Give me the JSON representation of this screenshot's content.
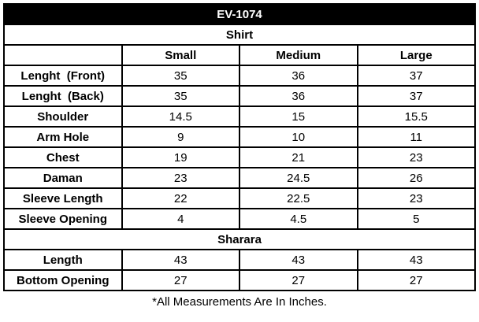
{
  "title": "EV-1074",
  "size_headers": [
    "Small",
    "Medium",
    "Large"
  ],
  "sections": [
    {
      "name": "Shirt",
      "show_size_header": true,
      "rows": [
        {
          "label": "Lenght  (Front)",
          "values": [
            "35",
            "36",
            "37"
          ]
        },
        {
          "label": "Lenght  (Back)",
          "values": [
            "35",
            "36",
            "37"
          ]
        },
        {
          "label": "Shoulder",
          "values": [
            "14.5",
            "15",
            "15.5"
          ]
        },
        {
          "label": "Arm Hole",
          "values": [
            "9",
            "10",
            "11"
          ]
        },
        {
          "label": "Chest",
          "values": [
            "19",
            "21",
            "23"
          ]
        },
        {
          "label": "Daman",
          "values": [
            "23",
            "24.5",
            "26"
          ]
        },
        {
          "label": "Sleeve Length",
          "values": [
            "22",
            "22.5",
            "23"
          ]
        },
        {
          "label": "Sleeve Opening",
          "values": [
            "4",
            "4.5",
            "5"
          ]
        }
      ]
    },
    {
      "name": "Sharara",
      "show_size_header": false,
      "rows": [
        {
          "label": "Length",
          "values": [
            "43",
            "43",
            "43"
          ]
        },
        {
          "label": "Bottom Opening",
          "values": [
            "27",
            "27",
            "27"
          ]
        }
      ]
    }
  ],
  "footnote": "*All Measurements Are In Inches.",
  "colors": {
    "title_bar_bg": "#000000",
    "title_bar_text": "#ffffff",
    "border": "#000000",
    "background": "#ffffff",
    "text": "#000000"
  }
}
